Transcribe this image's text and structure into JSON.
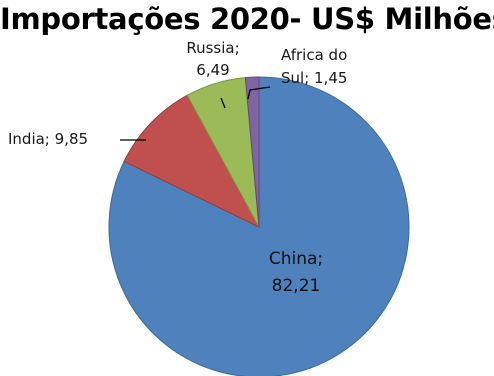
{
  "chart_data": {
    "type": "pie",
    "title": "Importações 2020- US$ Milhões",
    "slices": [
      {
        "name": "China",
        "value": 82.21,
        "label_lines": [
          "China;",
          "82,21"
        ],
        "color": "#4f81bd",
        "edge": "#3b6a9e"
      },
      {
        "name": "India",
        "value": 9.85,
        "label_lines": [
          "India; 9,85"
        ],
        "color": "#c0504d",
        "edge": "#9c3a37"
      },
      {
        "name": "Russia",
        "value": 6.49,
        "label_lines": [
          "Russia;",
          "6,49"
        ],
        "color": "#9bbb59",
        "edge": "#7a9a3e"
      },
      {
        "name": "Africa do Sul",
        "value": 1.45,
        "label_lines": [
          "Africa do",
          "Sul;  1,45"
        ],
        "color": "#8064a2",
        "edge": "#5f4a80"
      }
    ],
    "legend": "none"
  }
}
